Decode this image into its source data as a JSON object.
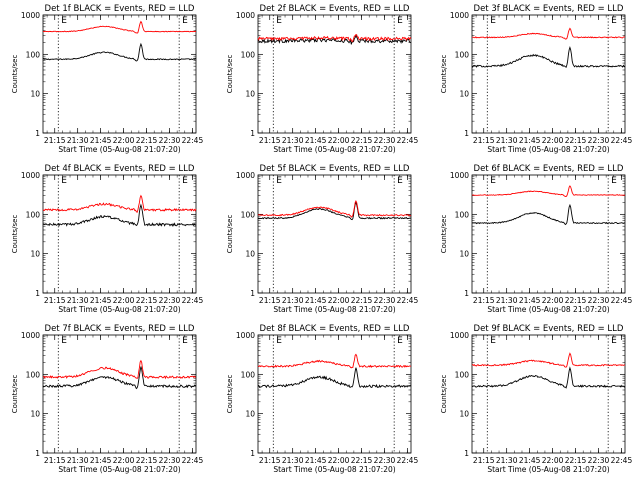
{
  "figure": {
    "background": "#ffffff",
    "colors": {
      "events": "#000000",
      "lld": "#ff0000",
      "axes": "#000000"
    }
  },
  "chart_data": [
    {
      "type": "line",
      "title": "Det 1f BLACK = Events, RED = LLD",
      "xlabel": "Start Time (05-Aug-08 21:07:20)",
      "ylabel": "Counts/sec",
      "yscale": "log",
      "ylim": [
        1,
        1000
      ],
      "yticks": [
        "1",
        "10",
        "100",
        "1000"
      ],
      "xlim_minutes": [
        0,
        100
      ],
      "xticks": [
        "21:15",
        "21:30",
        "21:45",
        "22:00",
        "22:15",
        "22:30",
        "22:45"
      ],
      "markers": [
        {
          "label": "E",
          "x_minute": 10,
          "style": "dotted"
        },
        {
          "label": "E",
          "x_minute": 89,
          "style": "dotted"
        }
      ],
      "series": [
        {
          "name": "BLACK = Events",
          "color": "#000000",
          "base": 75,
          "bump": 1.5,
          "spike": 2.4,
          "noise": 0.03
        },
        {
          "name": "RED = LLD",
          "color": "#ff0000",
          "base": 380,
          "bump": 1.35,
          "spike": 1.8,
          "noise": 0.02
        }
      ]
    },
    {
      "type": "line",
      "title": "Det 2f BLACK = Events, RED = LLD",
      "xlabel": "Start Time (05-Aug-08 21:07:20)",
      "ylabel": "Counts/sec",
      "yscale": "log",
      "ylim": [
        1,
        1000
      ],
      "yticks": [
        "1",
        "10",
        "100",
        "1000"
      ],
      "xlim_minutes": [
        0,
        100
      ],
      "xticks": [
        "21:15",
        "21:30",
        "21:45",
        "22:00",
        "22:15",
        "22:30",
        "22:45"
      ],
      "markers": [
        {
          "label": "E",
          "x_minute": 10,
          "style": "dotted"
        },
        {
          "label": "E",
          "x_minute": 89,
          "style": "dotted"
        }
      ],
      "series": [
        {
          "name": "BLACK = Events",
          "color": "#000000",
          "base": 220,
          "bump": 1.05,
          "spike": 1.3,
          "noise": 0.1
        },
        {
          "name": "RED = LLD",
          "color": "#ff0000",
          "base": 250,
          "bump": 1.05,
          "spike": 1.3,
          "noise": 0.08
        }
      ]
    },
    {
      "type": "line",
      "title": "Det 3f BLACK = Events, RED = LLD",
      "xlabel": "Start Time (05-Aug-08 21:07:20)",
      "ylabel": "Counts/sec",
      "yscale": "log",
      "ylim": [
        1,
        1000
      ],
      "yticks": [
        "1",
        "10",
        "100",
        "1000"
      ],
      "xlim_minutes": [
        0,
        100
      ],
      "xticks": [
        "21:15",
        "21:30",
        "21:45",
        "22:00",
        "22:15",
        "22:30",
        "22:45"
      ],
      "markers": [
        {
          "label": "E",
          "x_minute": 10,
          "style": "dotted"
        },
        {
          "label": "E",
          "x_minute": 89,
          "style": "dotted"
        }
      ],
      "series": [
        {
          "name": "BLACK = Events",
          "color": "#000000",
          "base": 50,
          "bump": 1.9,
          "spike": 2.9,
          "noise": 0.05
        },
        {
          "name": "RED = LLD",
          "color": "#ff0000",
          "base": 270,
          "bump": 1.25,
          "spike": 1.7,
          "noise": 0.03
        }
      ]
    },
    {
      "type": "line",
      "title": "Det 4f BLACK = Events, RED = LLD",
      "xlabel": "Start Time (05-Aug-08 21:07:20)",
      "ylabel": "Counts/sec",
      "yscale": "log",
      "ylim": [
        1,
        1000
      ],
      "yticks": [
        "1",
        "10",
        "100",
        "1000"
      ],
      "xlim_minutes": [
        0,
        100
      ],
      "xticks": [
        "21:15",
        "21:30",
        "21:45",
        "22:00",
        "22:15",
        "22:30",
        "22:45"
      ],
      "markers": [
        {
          "label": "E",
          "x_minute": 10,
          "style": "dotted"
        },
        {
          "label": "E",
          "x_minute": 89,
          "style": "dotted"
        }
      ],
      "series": [
        {
          "name": "BLACK = Events",
          "color": "#000000",
          "base": 55,
          "bump": 1.6,
          "spike": 3.0,
          "noise": 0.07
        },
        {
          "name": "RED = LLD",
          "color": "#ff0000",
          "base": 130,
          "bump": 1.4,
          "spike": 2.3,
          "noise": 0.06
        }
      ]
    },
    {
      "type": "line",
      "title": "Det 5f BLACK = Events, RED = LLD",
      "xlabel": "Start Time (05-Aug-08 21:07:20)",
      "ylabel": "Counts/sec",
      "yscale": "log",
      "ylim": [
        1,
        1000
      ],
      "yticks": [
        "1",
        "10",
        "100",
        "1000"
      ],
      "xlim_minutes": [
        0,
        100
      ],
      "xticks": [
        "21:15",
        "21:30",
        "21:45",
        "22:00",
        "22:15",
        "22:30",
        "22:45"
      ],
      "markers": [
        {
          "label": "E",
          "x_minute": 10,
          "style": "dotted"
        },
        {
          "label": "E",
          "x_minute": 89,
          "style": "dotted"
        }
      ],
      "series": [
        {
          "name": "BLACK = Events",
          "color": "#000000",
          "base": 80,
          "bump": 1.7,
          "spike": 2.4,
          "noise": 0.04
        },
        {
          "name": "RED = LLD",
          "color": "#ff0000",
          "base": 95,
          "bump": 1.6,
          "spike": 2.3,
          "noise": 0.04
        }
      ]
    },
    {
      "type": "line",
      "title": "Det 6f BLACK = Events, RED = LLD",
      "xlabel": "Start Time (05-Aug-08 21:07:20)",
      "ylabel": "Counts/sec",
      "yscale": "log",
      "ylim": [
        1,
        1000
      ],
      "yticks": [
        "1",
        "10",
        "100",
        "1000"
      ],
      "xlim_minutes": [
        0,
        100
      ],
      "xticks": [
        "21:15",
        "21:30",
        "21:45",
        "22:00",
        "22:15",
        "22:30",
        "22:45"
      ],
      "markers": [
        {
          "label": "E",
          "x_minute": 10,
          "style": "dotted"
        },
        {
          "label": "E",
          "x_minute": 89,
          "style": "dotted"
        }
      ],
      "series": [
        {
          "name": "BLACK = Events",
          "color": "#000000",
          "base": 60,
          "bump": 1.8,
          "spike": 2.8,
          "noise": 0.03
        },
        {
          "name": "RED = LLD",
          "color": "#ff0000",
          "base": 310,
          "bump": 1.25,
          "spike": 1.7,
          "noise": 0.02
        }
      ]
    },
    {
      "type": "line",
      "title": "Det 7f BLACK = Events, RED = LLD",
      "xlabel": "Start Time (05-Aug-08 21:07:20)",
      "ylabel": "Counts/sec",
      "yscale": "log",
      "ylim": [
        1,
        1000
      ],
      "yticks": [
        "1",
        "10",
        "100",
        "1000"
      ],
      "xlim_minutes": [
        0,
        100
      ],
      "xticks": [
        "21:15",
        "21:30",
        "21:45",
        "22:00",
        "22:15",
        "22:30",
        "22:45"
      ],
      "markers": [
        {
          "label": "E",
          "x_minute": 10,
          "style": "dotted"
        },
        {
          "label": "E",
          "x_minute": 89,
          "style": "dotted"
        }
      ],
      "series": [
        {
          "name": "BLACK = Events",
          "color": "#000000",
          "base": 50,
          "bump": 1.7,
          "spike": 3.0,
          "noise": 0.07
        },
        {
          "name": "RED = LLD",
          "color": "#ff0000",
          "base": 85,
          "bump": 1.7,
          "spike": 2.6,
          "noise": 0.06
        }
      ]
    },
    {
      "type": "line",
      "title": "Det 8f BLACK = Events, RED = LLD",
      "xlabel": "Start Time (05-Aug-08 21:07:20)",
      "ylabel": "Counts/sec",
      "yscale": "log",
      "ylim": [
        1,
        1000
      ],
      "yticks": [
        "1",
        "10",
        "100",
        "1000"
      ],
      "xlim_minutes": [
        0,
        100
      ],
      "xticks": [
        "21:15",
        "21:30",
        "21:45",
        "22:00",
        "22:15",
        "22:30",
        "22:45"
      ],
      "markers": [
        {
          "label": "E",
          "x_minute": 10,
          "style": "dotted"
        },
        {
          "label": "E",
          "x_minute": 89,
          "style": "dotted"
        }
      ],
      "series": [
        {
          "name": "BLACK = Events",
          "color": "#000000",
          "base": 50,
          "bump": 1.7,
          "spike": 2.8,
          "noise": 0.07
        },
        {
          "name": "RED = LLD",
          "color": "#ff0000",
          "base": 160,
          "bump": 1.35,
          "spike": 2.0,
          "noise": 0.05
        }
      ]
    },
    {
      "type": "line",
      "title": "Det 9f BLACK = Events, RED = LLD",
      "xlabel": "Start Time (05-Aug-08 21:07:20)",
      "ylabel": "Counts/sec",
      "yscale": "log",
      "ylim": [
        1,
        1000
      ],
      "yticks": [
        "1",
        "10",
        "100",
        "1000"
      ],
      "xlim_minutes": [
        0,
        100
      ],
      "xticks": [
        "21:15",
        "21:30",
        "21:45",
        "22:00",
        "22:15",
        "22:30",
        "22:45"
      ],
      "markers": [
        {
          "label": "E",
          "x_minute": 10,
          "style": "dotted"
        },
        {
          "label": "E",
          "x_minute": 89,
          "style": "dotted"
        }
      ],
      "series": [
        {
          "name": "BLACK = Events",
          "color": "#000000",
          "base": 50,
          "bump": 1.8,
          "spike": 2.8,
          "noise": 0.05
        },
        {
          "name": "RED = LLD",
          "color": "#ff0000",
          "base": 170,
          "bump": 1.3,
          "spike": 2.0,
          "noise": 0.04
        }
      ]
    }
  ]
}
